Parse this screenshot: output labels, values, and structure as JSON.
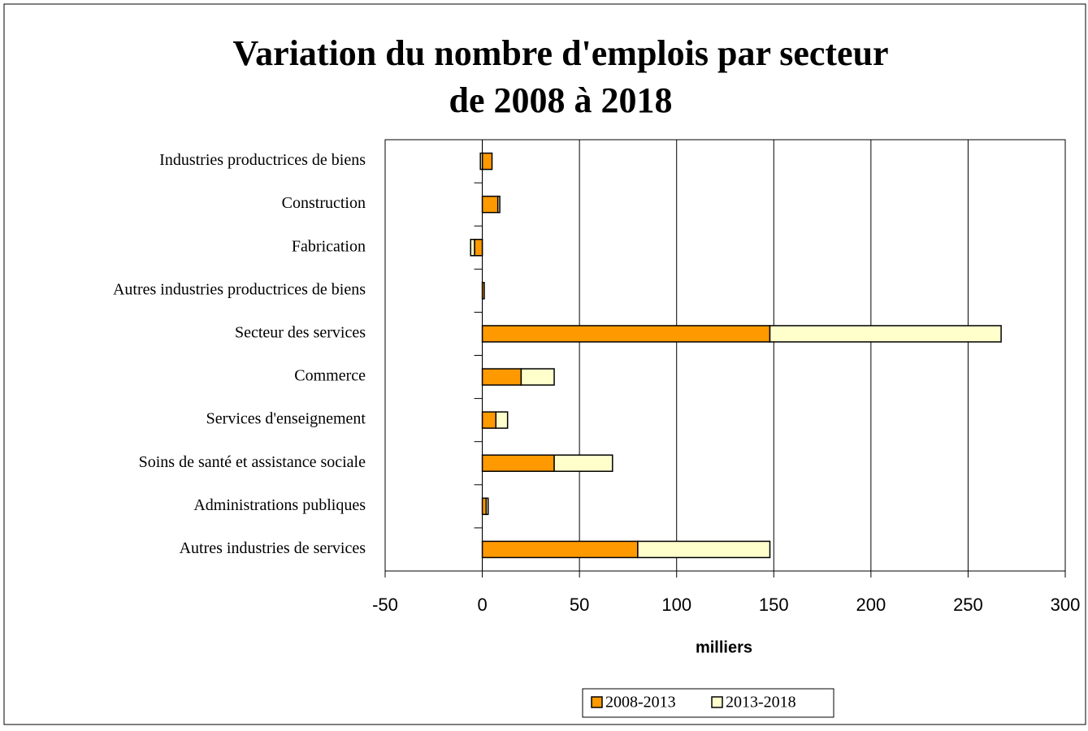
{
  "chart_data": {
    "type": "stacked_barh",
    "title": [
      "Variation du nombre d'emplois par secteur",
      "de 2008 à 2018"
    ],
    "xlabel": "milliers",
    "categories": [
      "Industries productrices de biens",
      "Construction",
      "Fabrication",
      "Autres industries productrices de biens",
      "Secteur des services",
      "Commerce",
      "Services d'enseignement",
      "Soins de santé et assistance sociale",
      "Administrations publiques",
      "Autres industries de services"
    ],
    "series": [
      {
        "name": "2008-2013",
        "color": "#ff9900",
        "values": [
          5,
          8,
          -4,
          1,
          148,
          20,
          7,
          37,
          2,
          80
        ]
      },
      {
        "name": "2013-2018",
        "color": "#ffffcc",
        "values": [
          -1,
          1,
          -2,
          0,
          119,
          17,
          6,
          30,
          1,
          68
        ]
      }
    ],
    "xlim": [
      -50,
      300
    ],
    "xticks": [
      -50,
      0,
      50,
      100,
      150,
      200,
      250,
      300
    ],
    "grid": true,
    "legend": "bottom"
  }
}
